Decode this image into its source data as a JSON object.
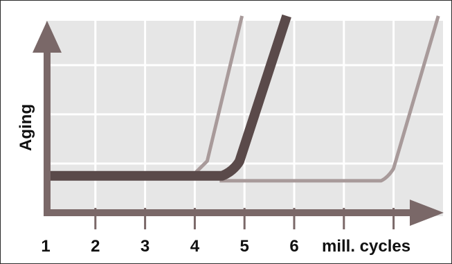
{
  "chart_data": {
    "type": "line",
    "title": "",
    "xlabel": "mill. cycles",
    "ylabel": "Aging",
    "x_ticks": [
      "1",
      "2",
      "3",
      "4",
      "5",
      "6"
    ],
    "xlim": [
      1,
      8.9
    ],
    "ylim": [
      0,
      4
    ],
    "grid": true,
    "colors": {
      "plot_bg": "#e6e6e6",
      "grid": "#ffffff",
      "axis": "#7a6868",
      "main": "#5a4a4a",
      "light": "#a89a9a"
    },
    "series": [
      {
        "emphasis": "main",
        "x": [
          1,
          4.55,
          4.8,
          4.9,
          5.85
        ],
        "y": [
          0.75,
          0.75,
          0.85,
          1.05,
          4.0
        ]
      },
      {
        "emphasis": "light",
        "x": [
          4.0,
          4.25,
          4.95
        ],
        "y": [
          0.8,
          1.05,
          4.0
        ]
      },
      {
        "emphasis": "light",
        "x": [
          4.5,
          7.75,
          7.9,
          8.0,
          8.9
        ],
        "y": [
          0.65,
          0.65,
          0.72,
          0.9,
          4.0
        ]
      }
    ]
  }
}
